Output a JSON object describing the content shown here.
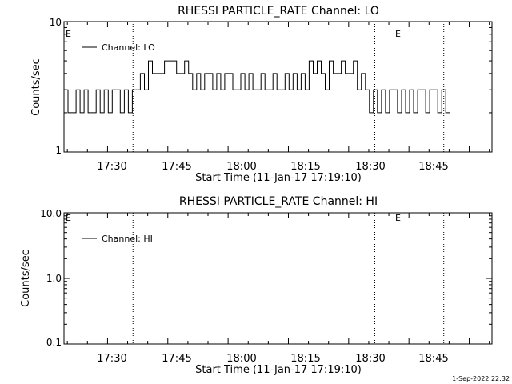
{
  "chart_data": [
    {
      "type": "line",
      "title": "RHESSI PARTICLE_RATE Channel: LO",
      "xlabel": "Start Time (11-Jan-17 17:19:10)",
      "ylabel": "Counts/sec",
      "yscale": "log",
      "ylim": [
        1,
        10
      ],
      "xlim": [
        "17:19:10",
        "19:05:40"
      ],
      "ytick_labels": [
        "10",
        "1"
      ],
      "xtick_labels": [
        "17:30",
        "17:45",
        "18:00",
        "18:15",
        "18:30",
        "18:45"
      ],
      "event_markers": [
        {
          "time": "17:36:20",
          "label": "E"
        },
        {
          "time": "18:36:30",
          "label": "E"
        },
        {
          "time": "18:53:40",
          "label": ""
        }
      ],
      "edge_label": "E",
      "legend": {
        "position": "top-left"
      },
      "grid": false,
      "series": [
        {
          "name": "Channel: LO",
          "x_minutes_after_start": [
            0.5,
            1.5,
            2.5,
            3.5,
            4.5,
            5.5,
            6.5,
            7.5,
            8.5,
            9.5,
            10.5,
            11.5,
            12.5,
            13.5,
            14.5,
            15.5,
            16.5,
            17.5,
            18.5,
            19.5,
            20.5,
            21.5,
            22.5,
            23.5,
            24.5,
            25.5,
            26.5,
            27.5,
            28.5,
            29.5,
            30.5,
            31.5,
            32.5,
            33.5,
            34.5,
            35.5,
            36.5,
            37.5,
            38.5,
            39.5,
            40.5,
            41.5,
            42.5,
            43.5,
            44.5,
            45.5,
            46.5,
            47.5,
            48.5,
            49.5,
            50.5,
            51.5,
            52.5,
            53.5,
            54.5,
            55.5,
            56.5,
            57.5,
            58.5,
            59.5,
            60.5,
            61.5,
            62.5,
            63.5,
            64.5,
            65.5,
            66.5,
            67.5,
            68.5,
            69.5,
            70.5,
            71.5,
            72.5,
            73.5,
            74.5,
            75.5,
            76.5,
            77.5,
            78.5,
            79.5,
            80.5,
            81.5,
            82.5,
            83.5,
            84.5,
            85.5,
            86.5,
            87.5,
            88.5,
            89.5,
            90.5,
            91.5,
            92.5,
            93.5,
            94.5,
            95.5
          ],
          "values": [
            3,
            2,
            2,
            3,
            2,
            3,
            2,
            2,
            3,
            2,
            3,
            2,
            3,
            3,
            2,
            3,
            2,
            3,
            3,
            4,
            3,
            5,
            4,
            4,
            4,
            5,
            5,
            5,
            4,
            4,
            5,
            4,
            3,
            4,
            3,
            4,
            4,
            3,
            4,
            3,
            4,
            4,
            3,
            3,
            4,
            3,
            4,
            3,
            3,
            4,
            3,
            3,
            4,
            3,
            3,
            4,
            3,
            4,
            3,
            4,
            3,
            5,
            4,
            5,
            4,
            3,
            5,
            4,
            4,
            5,
            4,
            4,
            5,
            3,
            4,
            3,
            2,
            3,
            2,
            3,
            2,
            3,
            3,
            2,
            3,
            2,
            3,
            2,
            3,
            3,
            2,
            3,
            3,
            2,
            3,
            2
          ]
        }
      ]
    },
    {
      "type": "line",
      "title": "RHESSI PARTICLE_RATE Channel: HI",
      "xlabel": "Start Time (11-Jan-17 17:19:10)",
      "ylabel": "Counts/sec",
      "yscale": "log",
      "ylim": [
        0.1,
        10
      ],
      "xlim": [
        "17:19:10",
        "19:05:40"
      ],
      "ytick_labels": [
        "10.0",
        "1.0",
        "0.1"
      ],
      "xtick_labels": [
        "17:30",
        "17:45",
        "18:00",
        "18:15",
        "18:30",
        "18:45"
      ],
      "event_markers": [
        {
          "time": "17:36:20",
          "label": "E"
        },
        {
          "time": "18:36:30",
          "label": "E"
        },
        {
          "time": "18:53:40",
          "label": ""
        }
      ],
      "edge_label": "E",
      "legend": {
        "position": "top-left"
      },
      "grid": false,
      "series": [
        {
          "name": "Channel: HI",
          "x_minutes_after_start": [],
          "values": []
        }
      ]
    }
  ],
  "footer": {
    "timestamp": "1-Sep-2022 22:32"
  }
}
